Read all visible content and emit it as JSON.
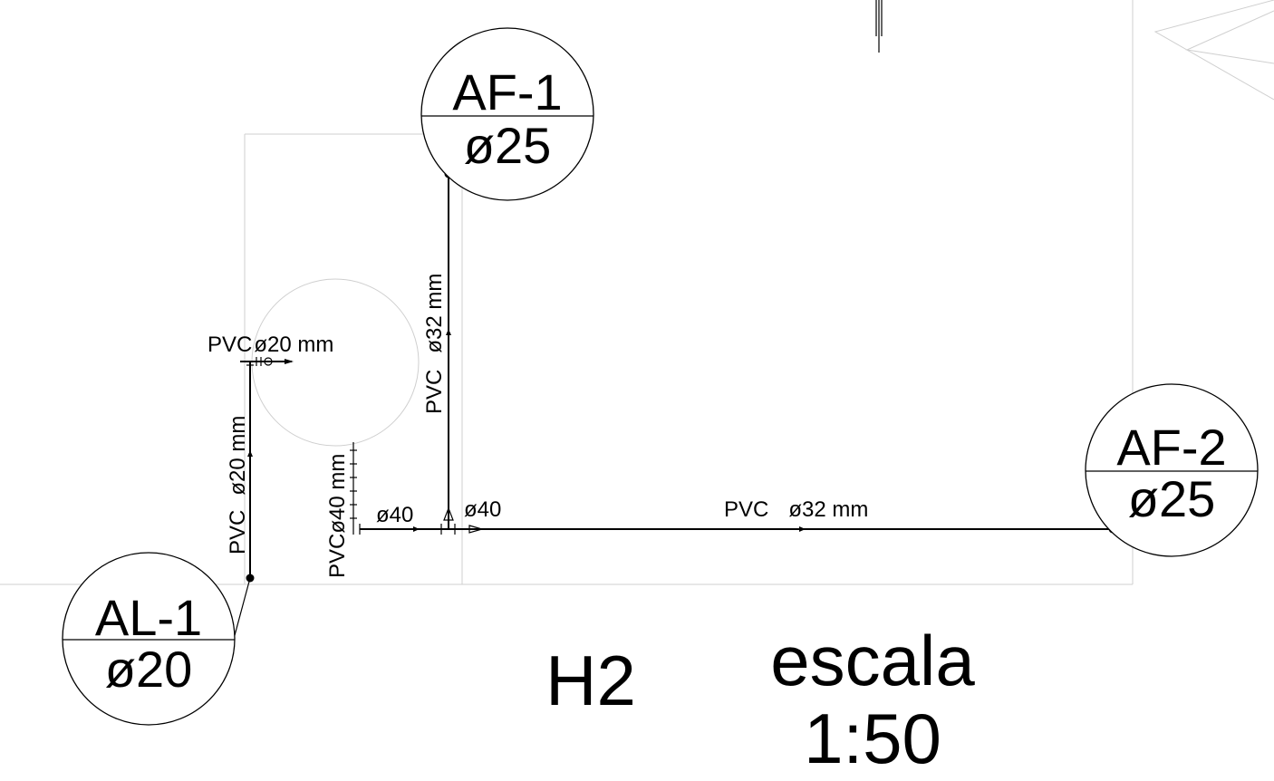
{
  "tags": {
    "af1": {
      "name": "AF-1",
      "diameter": "ø25"
    },
    "af2": {
      "name": "AF-2",
      "diameter": "ø25"
    },
    "al1": {
      "name": "AL-1",
      "diameter": "ø20"
    }
  },
  "pipes": {
    "al_riser_material": "PVC",
    "al_riser_size": "ø20 mm",
    "al_branch_material": "PVC",
    "al_branch_size": "ø20 mm",
    "af1_riser_material": "PVC",
    "af1_riser_size": "ø32 mm",
    "main_riser_material": "PVC",
    "main_riser_size": "ø40 mm",
    "main_run_material": "PVC",
    "main_run_size": "ø32 mm",
    "tee_left_size": "ø40",
    "tee_right_size": "ø40"
  },
  "title": {
    "name": "H2",
    "scale_word": "escala",
    "scale_value": "1:50"
  }
}
